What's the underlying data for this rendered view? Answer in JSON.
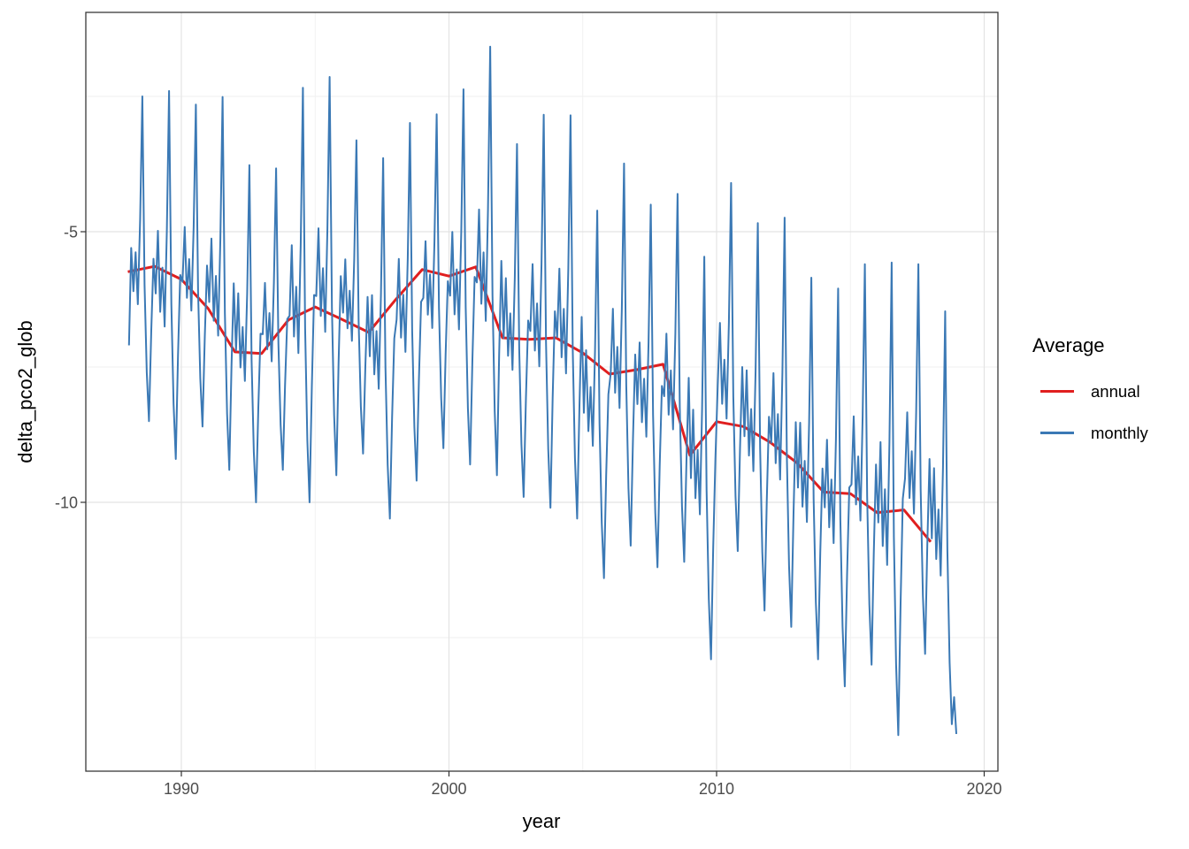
{
  "chart_data": {
    "type": "line",
    "title": "",
    "xlabel": "year",
    "ylabel": "delta_pco2_glob",
    "xlim": [
      1986.4,
      2020.5
    ],
    "ylim": [
      -14.97,
      -0.95
    ],
    "x_major_ticks": [
      1990,
      2000,
      2010,
      2020
    ],
    "x_minor_gridlines": [
      1995,
      2005,
      2015
    ],
    "y_major_ticks": [
      -5,
      -10
    ],
    "y_minor_gridlines": [
      -2.5,
      -7.5,
      -12.5
    ],
    "grid": "on",
    "legend": {
      "title": "Average",
      "position": "right",
      "items": [
        {
          "label": "annual",
          "color": "#e01f1f"
        },
        {
          "label": "monthly",
          "color": "#3b79b5"
        }
      ]
    },
    "years": [
      1988,
      1989,
      1990,
      1991,
      1992,
      1993,
      1994,
      1995,
      1996,
      1997,
      1998,
      1999,
      2000,
      2001,
      2002,
      2003,
      2004,
      2005,
      2006,
      2007,
      2008,
      2009,
      2010,
      2011,
      2012,
      2013,
      2014,
      2015,
      2016,
      2017,
      2018
    ],
    "series": [
      {
        "name": "annual",
        "color": "#e01f1f",
        "x": [
          1988,
          1989,
          1990,
          1991,
          1992,
          1993,
          1994,
          1995,
          1996,
          1997,
          1998,
          1999,
          2000,
          2001,
          2002,
          2003,
          2004,
          2005,
          2006,
          2007,
          2008,
          2009,
          2010,
          2011,
          2012,
          2013,
          2014,
          2015,
          2016,
          2017,
          2018
        ],
        "values": [
          -5.74,
          -5.64,
          -5.88,
          -6.42,
          -7.22,
          -7.25,
          -6.63,
          -6.39,
          -6.62,
          -6.86,
          -6.26,
          -5.7,
          -5.82,
          -5.65,
          -6.96,
          -6.99,
          -6.96,
          -7.24,
          -7.63,
          -7.55,
          -7.45,
          -9.13,
          -8.51,
          -8.6,
          -8.89,
          -9.27,
          -9.81,
          -9.84,
          -10.19,
          -10.14,
          -10.73
        ]
      },
      {
        "name": "monthly",
        "color": "#3b79b5",
        "years": [
          1988,
          1989,
          1990,
          1991,
          1992,
          1993,
          1994,
          1995,
          1996,
          1997,
          1998,
          1999,
          2000,
          2001,
          2002,
          2003,
          2004,
          2005,
          2006,
          2007,
          2008,
          2009,
          2010,
          2011,
          2012,
          2013,
          2014,
          2015,
          2016,
          2017,
          2018
        ],
        "yearly_peak": [
          -2.5,
          -2.4,
          -2.65,
          -2.51,
          -3.77,
          -3.83,
          -2.34,
          -2.14,
          -3.31,
          -3.64,
          -2.99,
          -2.83,
          -2.37,
          -1.58,
          -3.38,
          -2.84,
          -2.85,
          -4.61,
          -3.74,
          -4.5,
          -4.3,
          -5.46,
          -4.1,
          -4.84,
          -4.74,
          -5.85,
          -6.05,
          -5.6,
          -5.57,
          -5.6,
          -6.47
        ],
        "yearly_trough": [
          -8.5,
          -9.2,
          -8.6,
          -9.4,
          -10.0,
          -9.4,
          -10.0,
          -9.5,
          -9.1,
          -10.3,
          -9.6,
          -9.0,
          -9.3,
          -9.5,
          -9.9,
          -10.1,
          -10.3,
          -11.4,
          -10.8,
          -11.2,
          -11.1,
          -12.9,
          -10.9,
          -12.0,
          -12.3,
          -12.9,
          -13.4,
          -13.0,
          -14.3,
          -12.8,
          -14.1
        ],
        "month_lambda": [
          0.45,
          0.62,
          0.4,
          0.52,
          0.36,
          0.62,
          1.0,
          0.42,
          0.15,
          0.0,
          0.28,
          0.5
        ],
        "overrides": {
          "1988-0": -7.1,
          "1988-1": -5.3,
          "2018-10": -13.6,
          "2018-11": -14.28
        }
      }
    ]
  }
}
